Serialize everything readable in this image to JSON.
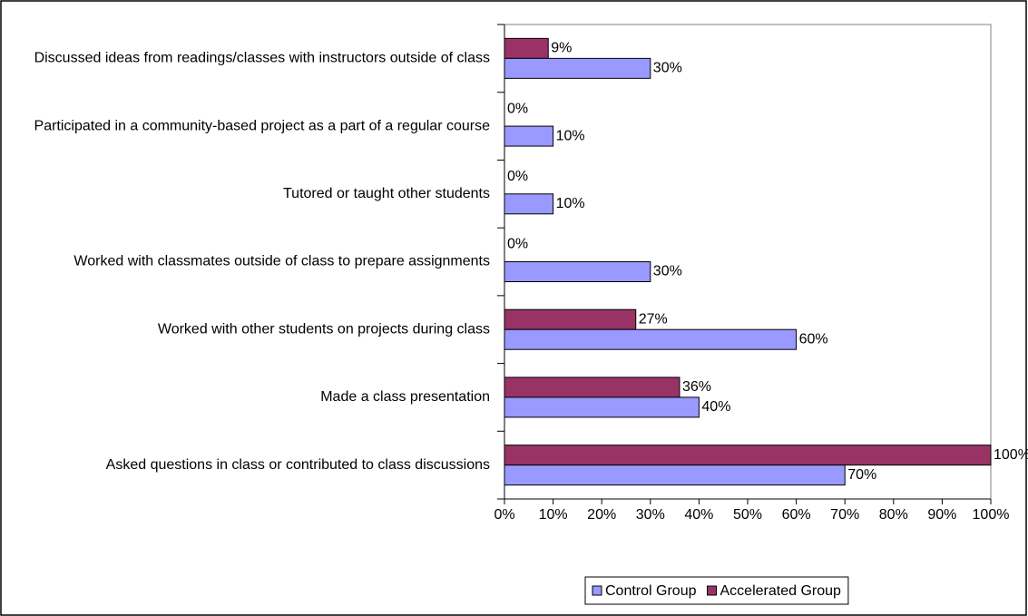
{
  "chart_data": {
    "type": "bar",
    "orientation": "horizontal",
    "categories": [
      "Discussed ideas from readings/classes with instructors outside of class",
      "Participated in a community-based project as a part of a regular course",
      "Tutored or taught other students",
      "Worked with classmates outside of class to prepare assignments",
      "Worked with other students on projects during class",
      "Made a class presentation",
      "Asked questions in class or contributed to class discussions"
    ],
    "series": [
      {
        "name": "Control Group",
        "color": "#9999ff",
        "values": [
          30,
          10,
          10,
          30,
          60,
          40,
          70
        ],
        "value_labels": [
          "30%",
          "10%",
          "10%",
          "30%",
          "60%",
          "40%",
          "70%"
        ]
      },
      {
        "name": "Accelerated Group",
        "color": "#993366",
        "values": [
          9,
          0,
          0,
          0,
          27,
          36,
          100
        ],
        "value_labels": [
          "9%",
          "0%",
          "0%",
          "0%",
          "27%",
          "36%",
          "100%"
        ]
      }
    ],
    "xlim": [
      0,
      100
    ],
    "xticks": [
      {
        "value": 0,
        "label": "0%"
      },
      {
        "value": 10,
        "label": "10%"
      },
      {
        "value": 20,
        "label": "20%"
      },
      {
        "value": 30,
        "label": "30%"
      },
      {
        "value": 40,
        "label": "40%"
      },
      {
        "value": 50,
        "label": "50%"
      },
      {
        "value": 60,
        "label": "60%"
      },
      {
        "value": 70,
        "label": "70%"
      },
      {
        "value": 80,
        "label": "80%"
      },
      {
        "value": 90,
        "label": "90%"
      },
      {
        "value": 100,
        "label": "100%"
      }
    ],
    "legend": "bottom"
  }
}
